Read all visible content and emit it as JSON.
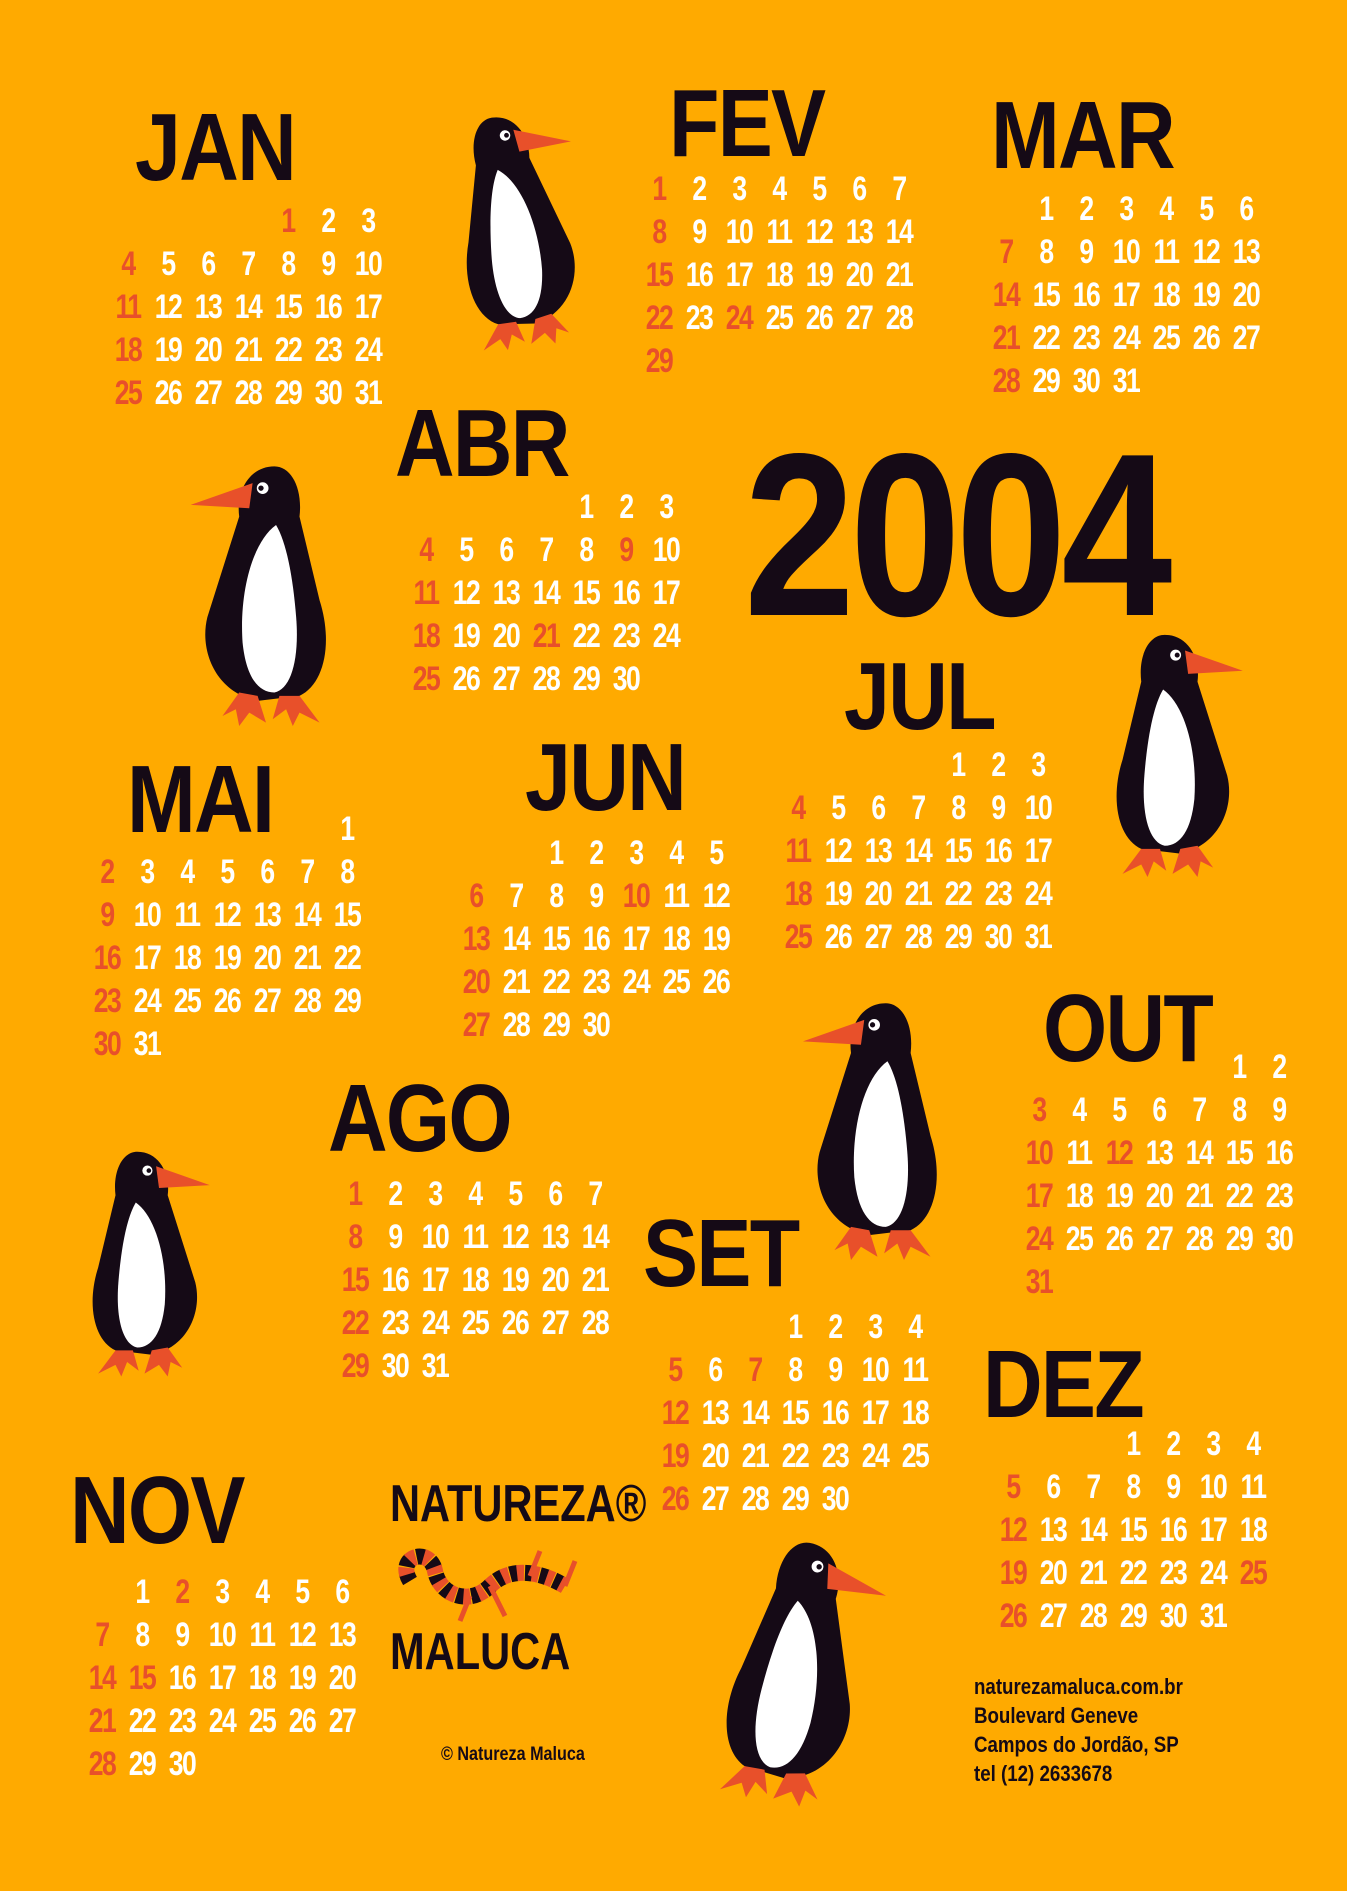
{
  "year": "2004",
  "colors": {
    "background": "#FFAA00",
    "holiday_red": "#E8502A",
    "ink": "#150A16",
    "day_white": "#FFFFFF"
  },
  "months": [
    {
      "id": "jan",
      "name": "JAN",
      "first_weekday": 4,
      "days": 31,
      "holidays": [
        1
      ]
    },
    {
      "id": "fev",
      "name": "FEV",
      "first_weekday": 0,
      "days": 29,
      "holidays": [
        24
      ]
    },
    {
      "id": "mar",
      "name": "MAR",
      "first_weekday": 1,
      "days": 31,
      "holidays": []
    },
    {
      "id": "abr",
      "name": "ABR",
      "first_weekday": 4,
      "days": 30,
      "holidays": [
        9,
        21
      ]
    },
    {
      "id": "mai",
      "name": "MAI",
      "first_weekday": 6,
      "days": 31,
      "holidays": []
    },
    {
      "id": "jun",
      "name": "JUN",
      "first_weekday": 2,
      "days": 30,
      "holidays": [
        10
      ]
    },
    {
      "id": "jul",
      "name": "JUL",
      "first_weekday": 4,
      "days": 31,
      "holidays": []
    },
    {
      "id": "ago",
      "name": "AGO",
      "first_weekday": 0,
      "days": 31,
      "holidays": []
    },
    {
      "id": "set",
      "name": "SET",
      "first_weekday": 3,
      "days": 30,
      "holidays": [
        7
      ]
    },
    {
      "id": "out",
      "name": "OUT",
      "first_weekday": 5,
      "days": 31,
      "holidays": [
        12
      ]
    },
    {
      "id": "nov",
      "name": "NOV",
      "first_weekday": 1,
      "days": 30,
      "holidays": [
        2,
        15
      ]
    },
    {
      "id": "dez",
      "name": "DEZ",
      "first_weekday": 3,
      "days": 31,
      "holidays": [
        25
      ]
    }
  ],
  "sunday_color": "red",
  "logo": {
    "line1": "NATUREZA®",
    "line2": "MALUCA",
    "icon": "striped-lizard-icon"
  },
  "copyright": "© Natureza Maluca",
  "address": [
    "naturezamaluca.com.br",
    "Boulevard Geneve",
    "Campos do Jordão, SP",
    "tel (12) 2633678"
  ],
  "decorations": {
    "icon": "penguin-icon",
    "count": 6
  }
}
